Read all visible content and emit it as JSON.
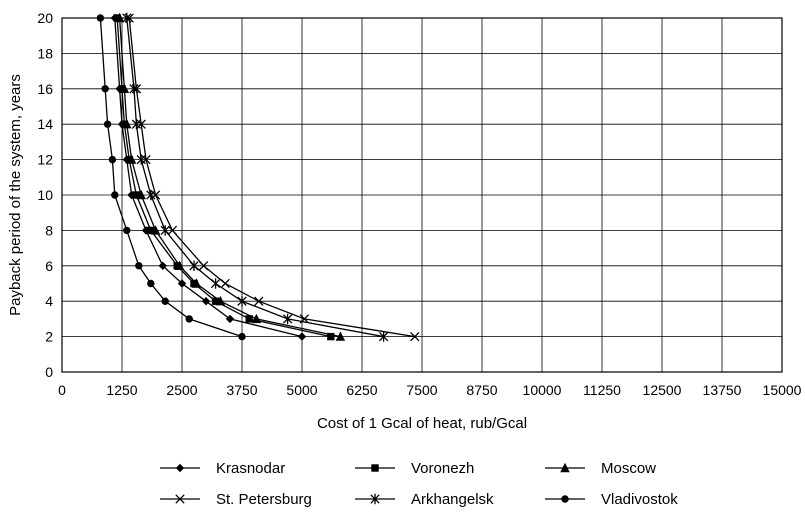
{
  "chart_data": {
    "type": "line",
    "title": "",
    "xlabel": "Cost of 1 Gcal of heat, rub/Gcal",
    "ylabel": "Payback period of the system, years",
    "xlim": [
      0,
      15000
    ],
    "ylim": [
      0,
      20
    ],
    "x_ticks": [
      0,
      1250,
      2500,
      3750,
      5000,
      6250,
      7500,
      8750,
      10000,
      11250,
      12500,
      13750,
      15000
    ],
    "y_ticks": [
      0,
      2,
      4,
      6,
      8,
      10,
      12,
      14,
      16,
      18,
      20
    ],
    "grid": true,
    "legend_position": "bottom",
    "series": [
      {
        "name": "Krasnodar",
        "marker": "diamond",
        "color": "#000000",
        "points": [
          [
            5000,
            2
          ],
          [
            3500,
            3
          ],
          [
            3000,
            4
          ],
          [
            2500,
            5
          ],
          [
            2100,
            6
          ],
          [
            1750,
            8
          ],
          [
            1450,
            10
          ],
          [
            1350,
            12
          ],
          [
            1250,
            14
          ],
          [
            1200,
            16
          ],
          [
            1100,
            20
          ]
        ]
      },
      {
        "name": "Voronezh",
        "marker": "square",
        "color": "#000000",
        "points": [
          [
            5600,
            2
          ],
          [
            3900,
            3
          ],
          [
            3200,
            4
          ],
          [
            2750,
            5
          ],
          [
            2400,
            6
          ],
          [
            1850,
            8
          ],
          [
            1550,
            10
          ],
          [
            1400,
            12
          ],
          [
            1300,
            14
          ],
          [
            1250,
            16
          ],
          [
            1150,
            20
          ]
        ]
      },
      {
        "name": "Moscow",
        "marker": "triangle",
        "color": "#000000",
        "points": [
          [
            5800,
            2
          ],
          [
            4050,
            3
          ],
          [
            3300,
            4
          ],
          [
            2800,
            5
          ],
          [
            2450,
            6
          ],
          [
            1950,
            8
          ],
          [
            1650,
            10
          ],
          [
            1450,
            12
          ],
          [
            1350,
            14
          ],
          [
            1300,
            16
          ],
          [
            1200,
            20
          ]
        ]
      },
      {
        "name": "St. Petersburg",
        "marker": "x",
        "color": "#000000",
        "points": [
          [
            7350,
            2
          ],
          [
            5050,
            3
          ],
          [
            4100,
            4
          ],
          [
            3400,
            5
          ],
          [
            2950,
            6
          ],
          [
            2300,
            8
          ],
          [
            1950,
            10
          ],
          [
            1750,
            12
          ],
          [
            1650,
            14
          ],
          [
            1550,
            16
          ],
          [
            1400,
            20
          ]
        ]
      },
      {
        "name": "Arkhangelsk",
        "marker": "asterisk",
        "color": "#000000",
        "points": [
          [
            6700,
            2
          ],
          [
            4700,
            3
          ],
          [
            3750,
            4
          ],
          [
            3200,
            5
          ],
          [
            2750,
            6
          ],
          [
            2150,
            8
          ],
          [
            1850,
            10
          ],
          [
            1650,
            12
          ],
          [
            1550,
            14
          ],
          [
            1500,
            16
          ],
          [
            1350,
            20
          ]
        ]
      },
      {
        "name": "Vladivostok",
        "marker": "circle",
        "color": "#000000",
        "points": [
          [
            3750,
            2
          ],
          [
            2650,
            3
          ],
          [
            2150,
            4
          ],
          [
            1850,
            5
          ],
          [
            1600,
            6
          ],
          [
            1350,
            8
          ],
          [
            1100,
            10
          ],
          [
            1050,
            12
          ],
          [
            950,
            14
          ],
          [
            900,
            16
          ],
          [
            800,
            20
          ]
        ]
      }
    ]
  }
}
